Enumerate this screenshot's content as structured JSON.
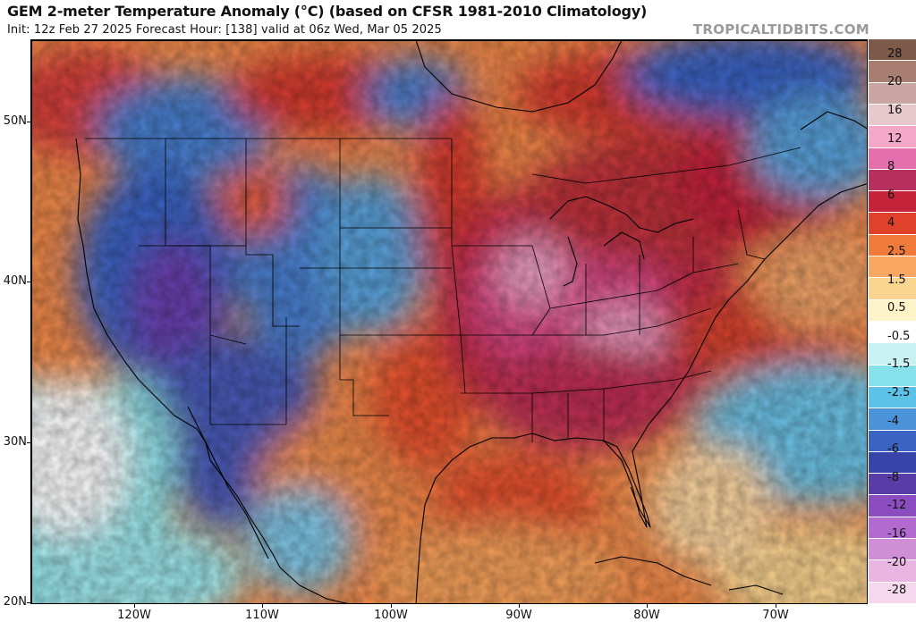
{
  "header": {
    "title": "GEM 2-meter Temperature Anomaly (°C) (based on CFSR 1981-2010 Climatology)",
    "subtitle": "Init: 12z Feb 27 2025   Forecast Hour: [138]   valid at 06z Wed, Mar 05 2025",
    "brand": "TROPICALTIDBITS.COM"
  },
  "map": {
    "lat_labels": [
      "50N",
      "40N",
      "30N",
      "20N"
    ],
    "lon_labels": [
      "120W",
      "110W",
      "100W",
      "90W",
      "80W",
      "70W"
    ],
    "regions": [
      {
        "name": "pacific-northwest",
        "anomaly": "warm"
      },
      {
        "name": "great-basin",
        "anomaly": "very cold"
      },
      {
        "name": "rockies",
        "anomaly": "cold"
      },
      {
        "name": "southern-plains",
        "anomaly": "warm"
      },
      {
        "name": "ohio-valley",
        "anomaly": "very warm"
      },
      {
        "name": "southeast",
        "anomaly": "very warm"
      },
      {
        "name": "western-atlantic",
        "anomaly": "cool"
      },
      {
        "name": "gulf-of-mexico",
        "anomaly": "warm"
      }
    ]
  },
  "colorbar": {
    "labels": [
      "28",
      "20",
      "16",
      "12",
      "8",
      "6",
      "4",
      "2.5",
      "1.5",
      "0.5",
      "-0.5",
      "-1.5",
      "-2.5",
      "-4",
      "-6",
      "-8",
      "-12",
      "-16",
      "-20",
      "-28"
    ],
    "colors": [
      "#7d5a4a",
      "#a87e70",
      "#c9a6a2",
      "#e7c8cc",
      "#f4a8c8",
      "#e56fae",
      "#b5305c",
      "#c4233a",
      "#e0412a",
      "#ef7a3a",
      "#f8a862",
      "#fbd490",
      "#fdf3c8",
      "#ffffff",
      "#c8f2f2",
      "#86e1ea",
      "#5cc2e8",
      "#4a93d8",
      "#3b63c4",
      "#3745a8",
      "#5a3ca6",
      "#8a4cbe",
      "#b26ad0",
      "#d08ed6",
      "#e9b6e2",
      "#f6d8ee"
    ]
  }
}
